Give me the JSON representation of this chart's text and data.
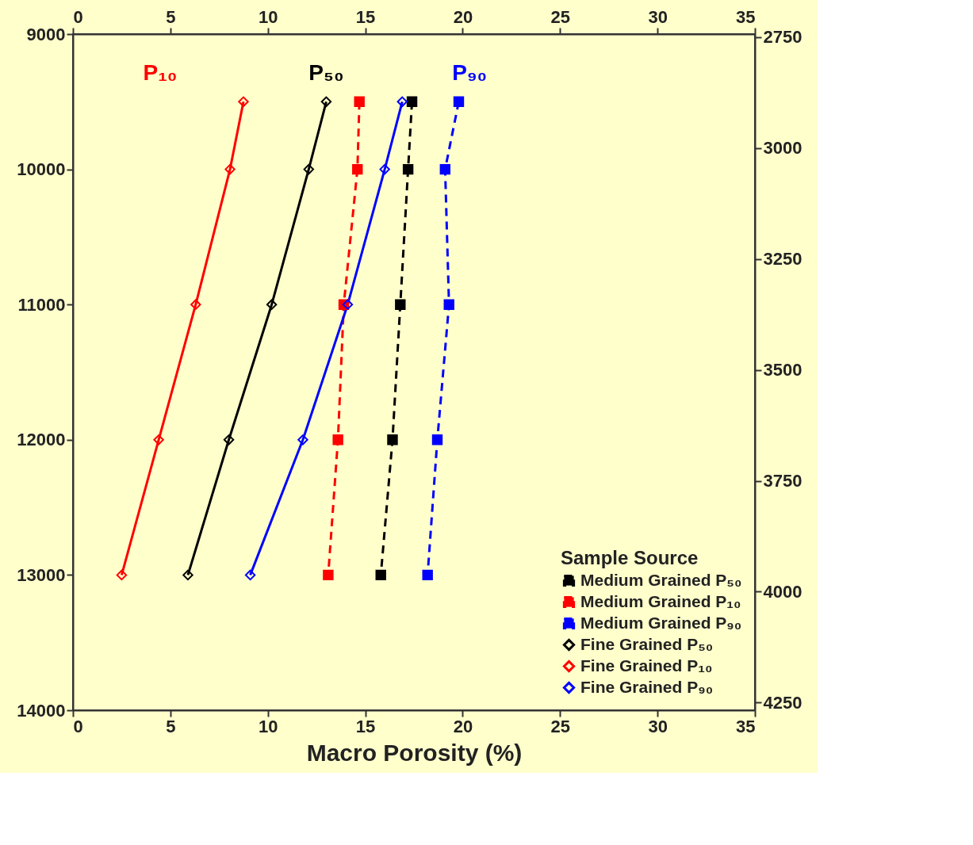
{
  "chart_data": {
    "type": "line",
    "xlabel": "Macro Porosity (%)",
    "legend_title": "Sample Source",
    "legend": "bottom right",
    "grid": false,
    "xlim": [
      0,
      35
    ],
    "xticks": [
      0,
      5,
      10,
      15,
      20,
      25,
      30,
      35
    ],
    "x2lim": [
      0,
      35
    ],
    "x2ticks": [
      0,
      5,
      10,
      15,
      20,
      25,
      30,
      35
    ],
    "ylim": [
      14000,
      9000
    ],
    "yticks": [
      9000,
      10000,
      11000,
      12000,
      13000,
      14000
    ],
    "y2lim": [
      4267.2,
      2743.2
    ],
    "y2ticks": [
      2750,
      3000,
      3250,
      3500,
      3750,
      4000,
      4250
    ],
    "series": [
      {
        "name": "Medium Grained P₅₀",
        "color": "#000000",
        "line_style": "dashed",
        "marker": "square",
        "x": [
          17.4,
          17.2,
          16.8,
          16.4,
          15.8
        ],
        "values": [
          9500,
          10000,
          11000,
          12000,
          13000
        ]
      },
      {
        "name": "Medium Grained P₁₀",
        "color": "#ff0000",
        "line_style": "dashed",
        "marker": "square",
        "x": [
          14.7,
          14.6,
          13.9,
          13.6,
          13.1
        ],
        "values": [
          9500,
          10000,
          11000,
          12000,
          13000
        ]
      },
      {
        "name": "Medium Grained P₉₀",
        "color": "#0000ff",
        "line_style": "dashed",
        "marker": "square",
        "x": [
          19.8,
          19.1,
          19.3,
          18.7,
          18.2
        ],
        "values": [
          9500,
          10000,
          11000,
          12000,
          13000
        ]
      },
      {
        "name": "Fine Grained P₅₀",
        "color": "#000000",
        "line_style": "solid",
        "marker": "diamond",
        "x": [
          13.0,
          12.1,
          10.2,
          8.0,
          5.9
        ],
        "values": [
          9500,
          10000,
          11000,
          12000,
          13000
        ]
      },
      {
        "name": "Fine Grained P₁₀",
        "color": "#ff0000",
        "line_style": "solid",
        "marker": "diamond",
        "x": [
          8.75,
          8.06,
          6.3,
          4.4,
          2.5
        ],
        "values": [
          9500,
          10000,
          11000,
          12000,
          13000
        ]
      },
      {
        "name": "Fine Grained P₉₀",
        "color": "#0000ff",
        "line_style": "solid",
        "marker": "diamond",
        "x": [
          16.9,
          16.0,
          14.1,
          11.8,
          9.1
        ],
        "values": [
          9500,
          10000,
          11000,
          12000,
          13000
        ]
      }
    ],
    "annotations": [
      "P₁₀",
      "P₅₀",
      "P₉₀"
    ]
  }
}
